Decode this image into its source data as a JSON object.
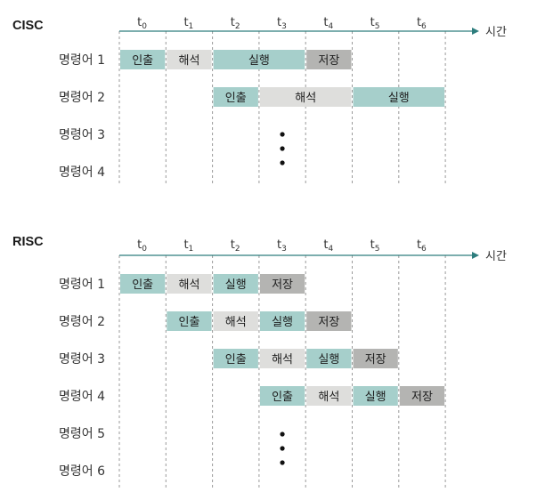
{
  "stage_colors": {
    "인출": "#a6cfcb",
    "해석": "#dededc",
    "실행": "#a6cfcb",
    "저장": "#b4b4b2"
  },
  "axis_color": "#2d7d7d",
  "sections": [
    {
      "id": "cisc",
      "title": "CISC",
      "time_label": "시간",
      "ticks": [
        "0",
        "1",
        "2",
        "3",
        "4",
        "5",
        "6"
      ],
      "rows": [
        {
          "label": "명령어 1",
          "stages": [
            {
              "name": "인출",
              "start": 0,
              "end": 1
            },
            {
              "name": "해석",
              "start": 1,
              "end": 2
            },
            {
              "name": "실행",
              "start": 2,
              "end": 4
            },
            {
              "name": "저장",
              "start": 4,
              "end": 5
            }
          ]
        },
        {
          "label": "명령어 2",
          "stages": [
            {
              "name": "인출",
              "start": 2,
              "end": 3
            },
            {
              "name": "해석",
              "start": 3,
              "end": 5
            },
            {
              "name": "실행",
              "start": 5,
              "end": 7
            }
          ]
        },
        {
          "label": "명령어 3",
          "stages": []
        },
        {
          "label": "명령어 4",
          "stages": []
        }
      ],
      "ellipsis_col": 3
    },
    {
      "id": "risc",
      "title": "RISC",
      "time_label": "시간",
      "ticks": [
        "0",
        "1",
        "2",
        "3",
        "4",
        "5",
        "6"
      ],
      "rows": [
        {
          "label": "명령어 1",
          "stages": [
            {
              "name": "인출",
              "start": 0,
              "end": 1
            },
            {
              "name": "해석",
              "start": 1,
              "end": 2
            },
            {
              "name": "실행",
              "start": 2,
              "end": 3
            },
            {
              "name": "저장",
              "start": 3,
              "end": 4
            }
          ]
        },
        {
          "label": "명령어 2",
          "stages": [
            {
              "name": "인출",
              "start": 1,
              "end": 2
            },
            {
              "name": "해석",
              "start": 2,
              "end": 3
            },
            {
              "name": "실행",
              "start": 3,
              "end": 4
            },
            {
              "name": "저장",
              "start": 4,
              "end": 5
            }
          ]
        },
        {
          "label": "명령어 3",
          "stages": [
            {
              "name": "인출",
              "start": 2,
              "end": 3
            },
            {
              "name": "해석",
              "start": 3,
              "end": 4
            },
            {
              "name": "실행",
              "start": 4,
              "end": 5
            },
            {
              "name": "저장",
              "start": 5,
              "end": 6
            }
          ]
        },
        {
          "label": "명령어 4",
          "stages": [
            {
              "name": "인출",
              "start": 3,
              "end": 4
            },
            {
              "name": "해석",
              "start": 4,
              "end": 5
            },
            {
              "name": "실행",
              "start": 5,
              "end": 6
            },
            {
              "name": "저장",
              "start": 6,
              "end": 7
            }
          ]
        },
        {
          "label": "명령어 5",
          "stages": []
        },
        {
          "label": "명령어 6",
          "stages": []
        }
      ],
      "ellipsis_col": 3
    }
  ]
}
